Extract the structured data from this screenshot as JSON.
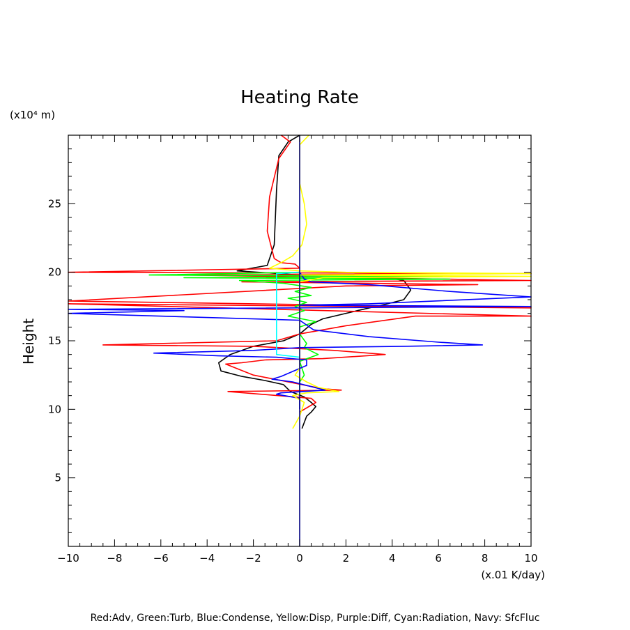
{
  "chart_data": {
    "type": "line",
    "title": "Heating Rate",
    "xlabel": "(x.01 K/day)",
    "ylabel": "Height",
    "y_unit": "(x10⁴ m)",
    "xlim": [
      -10,
      10
    ],
    "ylim": [
      0,
      30
    ],
    "x_ticks": [
      -10,
      -8,
      -6,
      -4,
      -2,
      0,
      2,
      4,
      6,
      8,
      10
    ],
    "x_tick_labels": [
      "−10",
      "−8",
      "−6",
      "−4",
      "−2",
      "0",
      "2",
      "4",
      "6",
      "8",
      "10"
    ],
    "y_ticks": [
      5,
      10,
      15,
      20,
      25
    ],
    "y_tick_labels": [
      "5",
      "10",
      "15",
      "20",
      "25"
    ],
    "grid": false,
    "footer": "Red:Adv, Green:Turb, Blue:Condense, Yellow:Disp, Purple:Diff, Cyan:Radiation, Navy: SfcFluc",
    "series": [
      {
        "color": "#000000",
        "points": [
          [
            0,
            30
          ],
          [
            -0.5,
            29.5
          ],
          [
            -0.9,
            28.5
          ],
          [
            -1.0,
            26
          ],
          [
            -1.1,
            22
          ],
          [
            -1.4,
            20.5
          ],
          [
            -2.7,
            20.1
          ],
          [
            0,
            19.8
          ],
          [
            3,
            19.8
          ],
          [
            4.5,
            19.4
          ],
          [
            4.8,
            18.7
          ],
          [
            4.5,
            18
          ],
          [
            3.8,
            17.7
          ],
          [
            2.5,
            17.2
          ],
          [
            1,
            16.6
          ],
          [
            0.5,
            16.2
          ],
          [
            0,
            15.5
          ],
          [
            -0.7,
            15
          ],
          [
            -2,
            14.6
          ],
          [
            -3,
            14
          ],
          [
            -3.5,
            13.4
          ],
          [
            -3.4,
            12.8
          ],
          [
            -2.5,
            12.4
          ],
          [
            -1.5,
            12.1
          ],
          [
            -0.7,
            11.8
          ],
          [
            -0.4,
            11.3
          ],
          [
            0.2,
            10.9
          ],
          [
            0.5,
            10.5
          ],
          [
            0.7,
            10.2
          ],
          [
            0.5,
            9.8
          ],
          [
            0.3,
            9.5
          ],
          [
            0.1,
            8.6
          ]
        ]
      },
      {
        "color": "#ff0000",
        "points": [
          [
            -0.8,
            30
          ],
          [
            -0.4,
            29.5
          ],
          [
            -0.9,
            28.3
          ],
          [
            -1.3,
            25.5
          ],
          [
            -1.4,
            23
          ],
          [
            -1.1,
            21
          ],
          [
            -0.8,
            20.7
          ],
          [
            -0.2,
            20.6
          ],
          [
            0,
            20.3
          ],
          [
            -10,
            20
          ],
          [
            10,
            19.9
          ],
          [
            -5,
            19.8
          ],
          [
            10,
            19.4
          ],
          [
            -2.5,
            19.3
          ],
          [
            7.7,
            19.1
          ],
          [
            2,
            19
          ],
          [
            -10,
            17.9
          ],
          [
            10,
            17.4
          ],
          [
            -10,
            17.7
          ],
          [
            10,
            16.8
          ],
          [
            5,
            16.8
          ],
          [
            2,
            16.1
          ],
          [
            0,
            15.5
          ],
          [
            -1,
            15
          ],
          [
            -8.5,
            14.7
          ],
          [
            -2,
            14.6
          ],
          [
            1.5,
            14.3
          ],
          [
            3.7,
            14
          ],
          [
            1,
            13.7
          ],
          [
            -1.5,
            13.6
          ],
          [
            -2.5,
            13.4
          ],
          [
            -3.2,
            13.3
          ],
          [
            -2,
            12.5
          ],
          [
            -0.5,
            12
          ],
          [
            1,
            11.5
          ],
          [
            1.8,
            11.4
          ],
          [
            -3.1,
            11.3
          ],
          [
            0.5,
            10.8
          ],
          [
            0.7,
            10.5
          ],
          [
            0.2,
            10
          ],
          [
            0,
            9.8
          ]
        ]
      },
      {
        "color": "#00ff00",
        "points": [
          [
            0,
            20
          ],
          [
            -6.5,
            19.8
          ],
          [
            6.8,
            19.7
          ],
          [
            -5,
            19.6
          ],
          [
            6.5,
            19.5
          ],
          [
            -2.6,
            19.4
          ],
          [
            -0.7,
            19.2
          ],
          [
            0.5,
            18.9
          ],
          [
            -0.2,
            18.6
          ],
          [
            0.5,
            18.3
          ],
          [
            -0.5,
            18.1
          ],
          [
            0.3,
            17.8
          ],
          [
            -0.2,
            17.5
          ],
          [
            0.2,
            17.2
          ],
          [
            -0.5,
            16.8
          ],
          [
            0.7,
            16.4
          ],
          [
            0,
            16.0
          ],
          [
            0,
            15.5
          ],
          [
            0.3,
            14.8
          ],
          [
            0.2,
            14.5
          ],
          [
            0.8,
            14
          ],
          [
            0,
            13.5
          ],
          [
            0.2,
            12.5
          ],
          [
            0,
            12
          ],
          [
            0,
            11
          ]
        ]
      },
      {
        "color": "#0000ff",
        "points": [
          [
            0,
            20
          ],
          [
            0.2,
            19.5
          ],
          [
            0.5,
            19.3
          ],
          [
            3,
            19.1
          ],
          [
            6.5,
            18.6
          ],
          [
            10,
            18.2
          ],
          [
            3,
            17.7
          ],
          [
            0,
            17.6
          ],
          [
            10,
            17.5
          ],
          [
            -10,
            17.3
          ],
          [
            -5,
            17.2
          ],
          [
            -10,
            17.0
          ],
          [
            0,
            16.5
          ],
          [
            0.6,
            15.8
          ],
          [
            3,
            15.3
          ],
          [
            6,
            14.9
          ],
          [
            7.9,
            14.7
          ],
          [
            4.5,
            14.6
          ],
          [
            0,
            14.5
          ],
          [
            -2,
            14.3
          ],
          [
            -6.3,
            14.1
          ],
          [
            -3.5,
            13.9
          ],
          [
            -1,
            13.8
          ],
          [
            0.3,
            13.6
          ],
          [
            0.3,
            13.2
          ],
          [
            -0.8,
            12.4
          ],
          [
            -1.2,
            12.2
          ],
          [
            -0.3,
            12.0
          ],
          [
            1.1,
            11.4
          ],
          [
            -0.8,
            11.2
          ],
          [
            -1.0,
            11.1
          ],
          [
            0,
            10.8
          ],
          [
            0,
            10
          ]
        ]
      },
      {
        "color": "#ffff00",
        "points": [
          [
            0.4,
            30
          ],
          [
            0,
            29.3
          ],
          [
            0,
            26.5
          ],
          [
            0.2,
            25
          ],
          [
            0.3,
            23.5
          ],
          [
            0.1,
            22
          ],
          [
            -0.3,
            21.2
          ],
          [
            -0.8,
            20.7
          ],
          [
            -1.3,
            20.3
          ],
          [
            0,
            20.1
          ],
          [
            2,
            20
          ],
          [
            10,
            19.9
          ],
          [
            0,
            19.8
          ],
          [
            10,
            19.7
          ],
          [
            1,
            19.6
          ],
          [
            0,
            19.3
          ],
          [
            0,
            13
          ],
          [
            -0.2,
            12.5
          ],
          [
            0.3,
            12
          ],
          [
            0.8,
            11.6
          ],
          [
            1.7,
            11.3
          ],
          [
            0.3,
            11.2
          ],
          [
            -0.3,
            11
          ],
          [
            0.2,
            10.5
          ],
          [
            0,
            9.5
          ],
          [
            -0.3,
            8.6
          ]
        ]
      },
      {
        "color": "#00ffff",
        "points": [
          [
            0,
            20
          ],
          [
            -1,
            19.9
          ],
          [
            -1,
            14
          ],
          [
            0,
            13.8
          ]
        ]
      },
      {
        "color": "#000080",
        "points": [
          [
            0,
            30
          ],
          [
            0,
            0
          ]
        ]
      }
    ]
  }
}
